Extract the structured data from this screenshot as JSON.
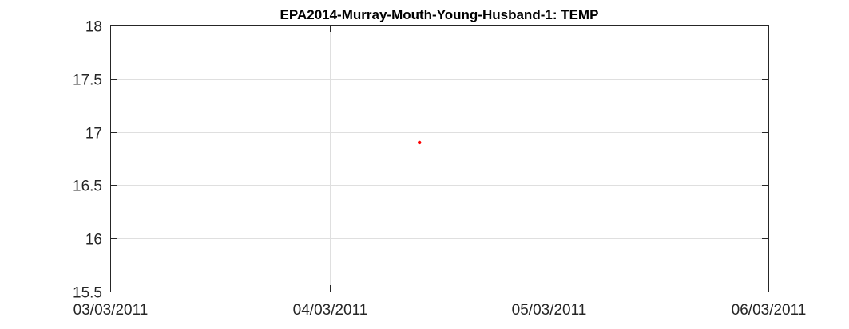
{
  "chart_data": {
    "type": "scatter",
    "title": "EPA2014-Murray-Mouth-Young-Husband-1: TEMP",
    "xlabel": "",
    "ylabel": "",
    "x_tick_labels": [
      "03/03/2011",
      "04/03/2011",
      "05/03/2011",
      "06/03/2011"
    ],
    "y_tick_labels": [
      "15.5",
      "16",
      "16.5",
      "17",
      "17.5",
      "18"
    ],
    "xlim": [
      "03/03/2011 00:00",
      "06/03/2011 00:00"
    ],
    "ylim": [
      15.5,
      18
    ],
    "grid": true,
    "series": [
      {
        "color": "#ff0000",
        "points": [
          {
            "x": "04/03/2011 09:50",
            "y": 16.9
          }
        ]
      }
    ]
  }
}
